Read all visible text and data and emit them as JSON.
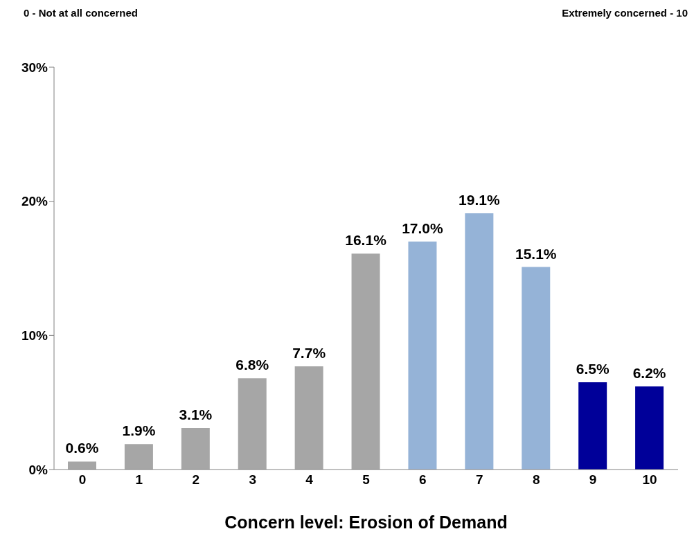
{
  "chart_data": {
    "type": "bar",
    "xlabel": "Concern level: Erosion of Demand",
    "annotations": [
      "0 - Not at all concerned",
      "Extremely concerned - 10"
    ],
    "categories": [
      "0",
      "1",
      "2",
      "3",
      "4",
      "5",
      "6",
      "7",
      "8",
      "9",
      "10"
    ],
    "values": [
      0.6,
      1.9,
      3.1,
      6.8,
      7.7,
      16.1,
      17.0,
      19.1,
      15.1,
      6.5,
      6.2
    ],
    "colors": [
      "#a6a6a6",
      "#a6a6a6",
      "#a6a6a6",
      "#a6a6a6",
      "#a6a6a6",
      "#a6a6a6",
      "#95b3d7",
      "#95b3d7",
      "#95b3d7",
      "#000099",
      "#000099"
    ],
    "value_labels": [
      "0.6%",
      "1.9%",
      "3.1%",
      "6.8%",
      "7.7%",
      "16.1%",
      "17.0%",
      "19.1%",
      "15.1%",
      "6.5%",
      "6.2%"
    ],
    "ylim": [
      0,
      30
    ],
    "yticks": [
      {
        "value": 0,
        "label": "0%"
      },
      {
        "value": 10,
        "label": "10%"
      },
      {
        "value": 20,
        "label": "20%"
      },
      {
        "value": 30,
        "label": "30%"
      }
    ],
    "grid": false,
    "legend": false
  }
}
